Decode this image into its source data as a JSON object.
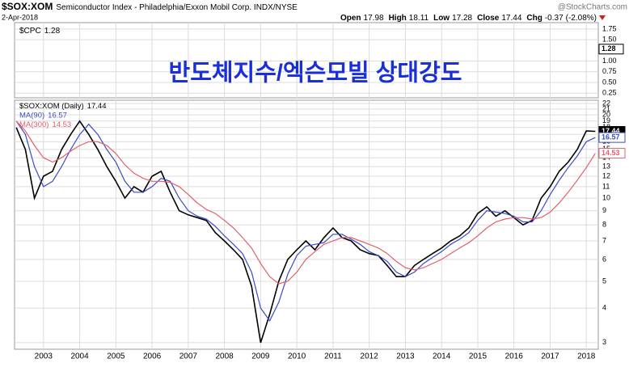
{
  "header": {
    "symbol": "$SOX:XOM",
    "description": "Semiconductor Index - Philadelphia/Exxon Mobil Corp. INDX/NYSE",
    "source": "@StockCharts.com",
    "date": "2-Apr-2018",
    "quote": [
      {
        "label": "Open",
        "value": 17.98
      },
      {
        "label": "High",
        "value": 18.11
      },
      {
        "label": "Low",
        "value": 17.28
      },
      {
        "label": "Close",
        "value": 17.44
      },
      {
        "label": "Chg",
        "value": -0.37
      }
    ],
    "change_pct": "(-2.08%)"
  },
  "chart_data": [
    {
      "type": "line",
      "annotation": "반도체지수/엑슨모빌 상대강도",
      "series": [
        {
          "name": "$CPC",
          "color": "#000000",
          "last_value": 1.28
        }
      ],
      "ylim": [
        0.14,
        1.9
      ],
      "yticks": [
        1.75,
        {
          "value": 1.5,
          "label": "1.50"
        },
        {
          "value": 1.0,
          "label": "1.00"
        },
        {
          "value": 0.75,
          "label": "0.75"
        },
        {
          "value": 0.5,
          "label": "0.50"
        },
        0.25
      ],
      "grid": true
    },
    {
      "type": "line",
      "log_scale": true,
      "grid": true,
      "x": [
        2002.25,
        2002.5,
        2002.75,
        2003,
        2003.25,
        2003.5,
        2003.75,
        2004,
        2004.25,
        2004.5,
        2004.75,
        2005,
        2005.25,
        2005.5,
        2005.75,
        2006,
        2006.25,
        2006.5,
        2006.75,
        2007,
        2007.25,
        2007.5,
        2007.75,
        2008,
        2008.25,
        2008.5,
        2008.75,
        2009,
        2009.25,
        2009.5,
        2009.75,
        2010,
        2010.25,
        2010.5,
        2010.75,
        2011,
        2011.25,
        2011.5,
        2011.75,
        2012,
        2012.25,
        2012.5,
        2012.75,
        2013,
        2013.25,
        2013.5,
        2013.75,
        2014,
        2014.25,
        2014.5,
        2014.75,
        2015,
        2015.25,
        2015.5,
        2015.75,
        2016,
        2016.25,
        2016.5,
        2016.75,
        2017,
        2017.25,
        2017.5,
        2017.75,
        2018,
        2018.25
      ],
      "series": [
        {
          "name": "$SOX:XOM (Daily)",
          "color": "#000000",
          "values": [
            18,
            15,
            10,
            12,
            12.5,
            15,
            17,
            19,
            17,
            15,
            13,
            11.5,
            10,
            11,
            10.5,
            12,
            12.5,
            10.5,
            9,
            8.7,
            8.5,
            8.3,
            7.5,
            7,
            6.5,
            6,
            4.8,
            3.0,
            3.8,
            5,
            6,
            6.5,
            7,
            6.5,
            7.2,
            7.8,
            7.2,
            7.0,
            6.5,
            6.3,
            6.2,
            5.7,
            5.2,
            5.2,
            5.7,
            6.0,
            6.3,
            6.6,
            7.0,
            7.3,
            7.8,
            8.8,
            9.3,
            8.6,
            9.0,
            8.5,
            8.0,
            8.3,
            10,
            11,
            12.5,
            13.5,
            15,
            17.5,
            17.44
          ]
        },
        {
          "name": "MA(90)",
          "color": "#3a4cc4",
          "values": [
            19,
            17,
            13,
            11,
            11.5,
            13,
            15,
            17,
            18.5,
            17,
            15,
            13.5,
            11.5,
            10.5,
            10.5,
            11,
            11.8,
            11.5,
            10,
            9,
            8.6,
            8.4,
            7.9,
            7.3,
            6.8,
            6.3,
            5.4,
            4,
            3.6,
            4.2,
            5.3,
            6.2,
            6.7,
            6.8,
            6.9,
            7.4,
            7.4,
            7.1,
            6.8,
            6.4,
            6.2,
            5.9,
            5.4,
            5.2,
            5.4,
            5.8,
            6.1,
            6.4,
            6.8,
            7.1,
            7.5,
            8.3,
            9.0,
            8.9,
            8.8,
            8.6,
            8.2,
            8.2,
            9.0,
            10.3,
            11.6,
            12.9,
            14.2,
            16.0,
            16.57
          ]
        },
        {
          "name": "MA(300)",
          "color": "#e0606e",
          "values": [
            19,
            17.5,
            15.5,
            14,
            13.5,
            14,
            14.8,
            15.5,
            16,
            16,
            15.5,
            14.5,
            13.2,
            12.3,
            11.8,
            11.5,
            11.5,
            11.4,
            11,
            10.3,
            9.6,
            9.1,
            8.8,
            8.3,
            7.8,
            7.2,
            6.6,
            5.8,
            5.2,
            4.9,
            5.0,
            5.4,
            6.0,
            6.4,
            6.8,
            7.0,
            7.2,
            7.2,
            7.0,
            6.8,
            6.6,
            6.3,
            5.9,
            5.6,
            5.5,
            5.6,
            5.8,
            6.0,
            6.3,
            6.6,
            6.9,
            7.3,
            7.8,
            8.2,
            8.4,
            8.5,
            8.5,
            8.4,
            8.5,
            8.9,
            9.6,
            10.5,
            11.6,
            12.9,
            14.53
          ]
        }
      ],
      "xlim": [
        2002.2,
        2018.33
      ],
      "xticks": [
        2003,
        2004,
        2005,
        2006,
        2007,
        2008,
        2009,
        2010,
        2011,
        2012,
        2013,
        2014,
        2015,
        2016,
        2017,
        2018
      ],
      "ylim": [
        2.84,
        22.6
      ],
      "yticks": [
        22,
        21,
        20,
        19,
        18,
        17,
        16,
        15,
        14,
        13,
        12,
        11,
        10,
        9,
        8,
        7,
        6,
        5,
        4,
        3
      ]
    }
  ]
}
